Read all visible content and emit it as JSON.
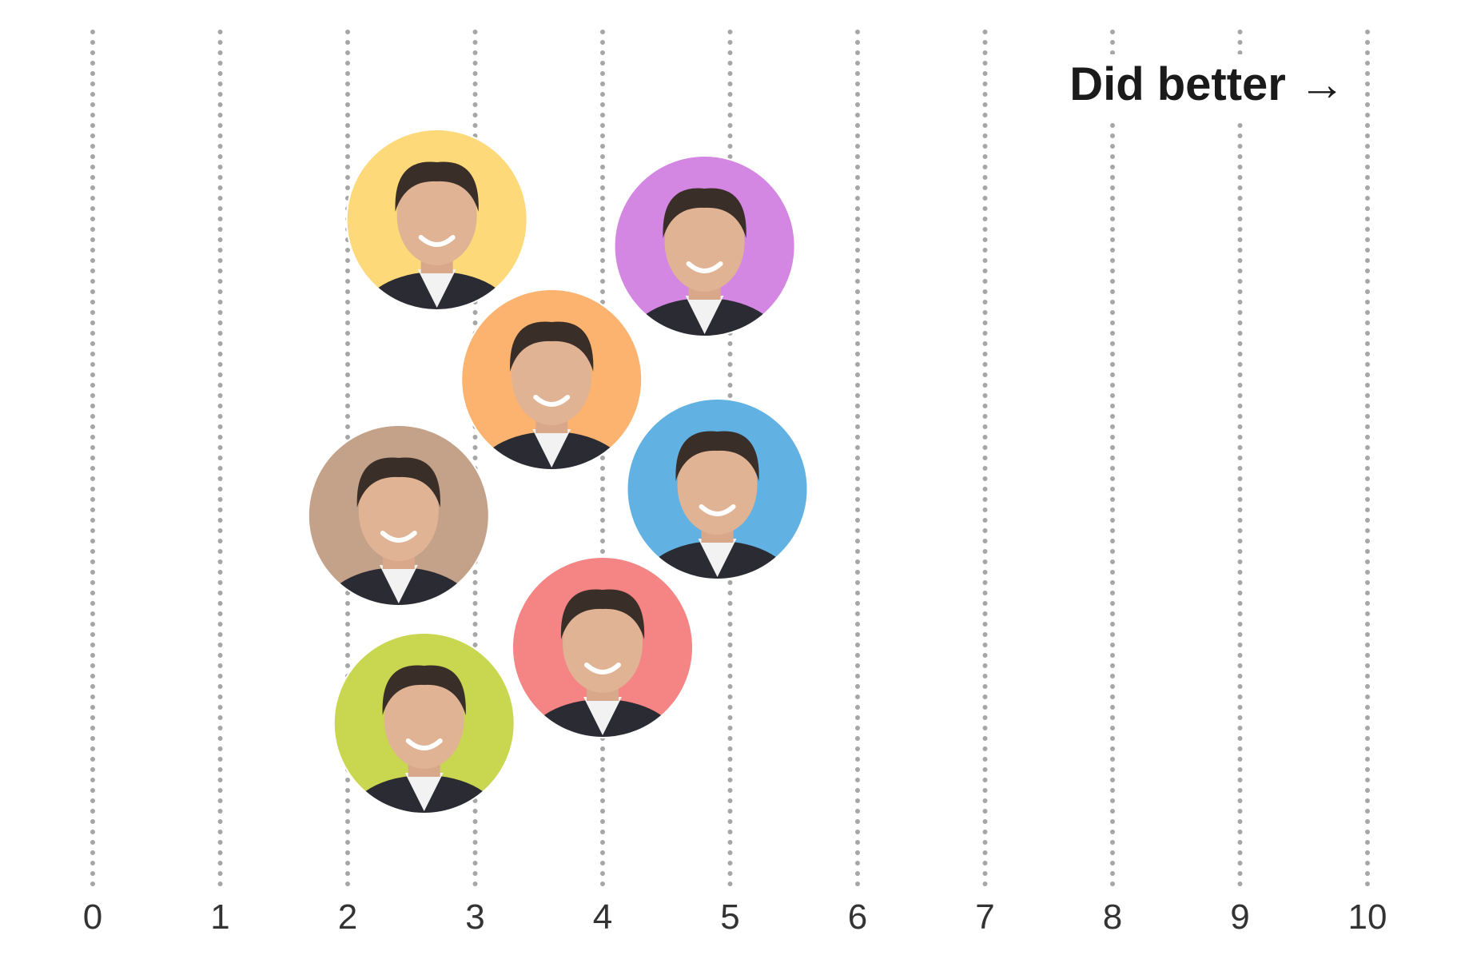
{
  "chart_data": {
    "type": "scatter",
    "title": "",
    "xlabel": "",
    "ylabel": "",
    "xlim": [
      0,
      10
    ],
    "x_ticks": [
      "0",
      "1",
      "2",
      "3",
      "4",
      "5",
      "6",
      "7",
      "8",
      "9",
      "10"
    ],
    "grid": true,
    "annotation": "Did better",
    "annotation_arrow": "→",
    "points": [
      {
        "x": 2.7,
        "color": "#fdd97a",
        "icon": "candidate-portrait-1"
      },
      {
        "x": 4.8,
        "color": "#d486e3",
        "icon": "candidate-portrait-2"
      },
      {
        "x": 3.6,
        "color": "#fcb36f",
        "icon": "candidate-portrait-3"
      },
      {
        "x": 2.4,
        "color": "#c4a189",
        "icon": "candidate-portrait-4"
      },
      {
        "x": 4.9,
        "color": "#61b1e3",
        "icon": "candidate-portrait-5"
      },
      {
        "x": 4.0,
        "color": "#f58584",
        "icon": "candidate-portrait-6"
      },
      {
        "x": 2.6,
        "color": "#c9d650",
        "icon": "candidate-portrait-7"
      }
    ]
  }
}
